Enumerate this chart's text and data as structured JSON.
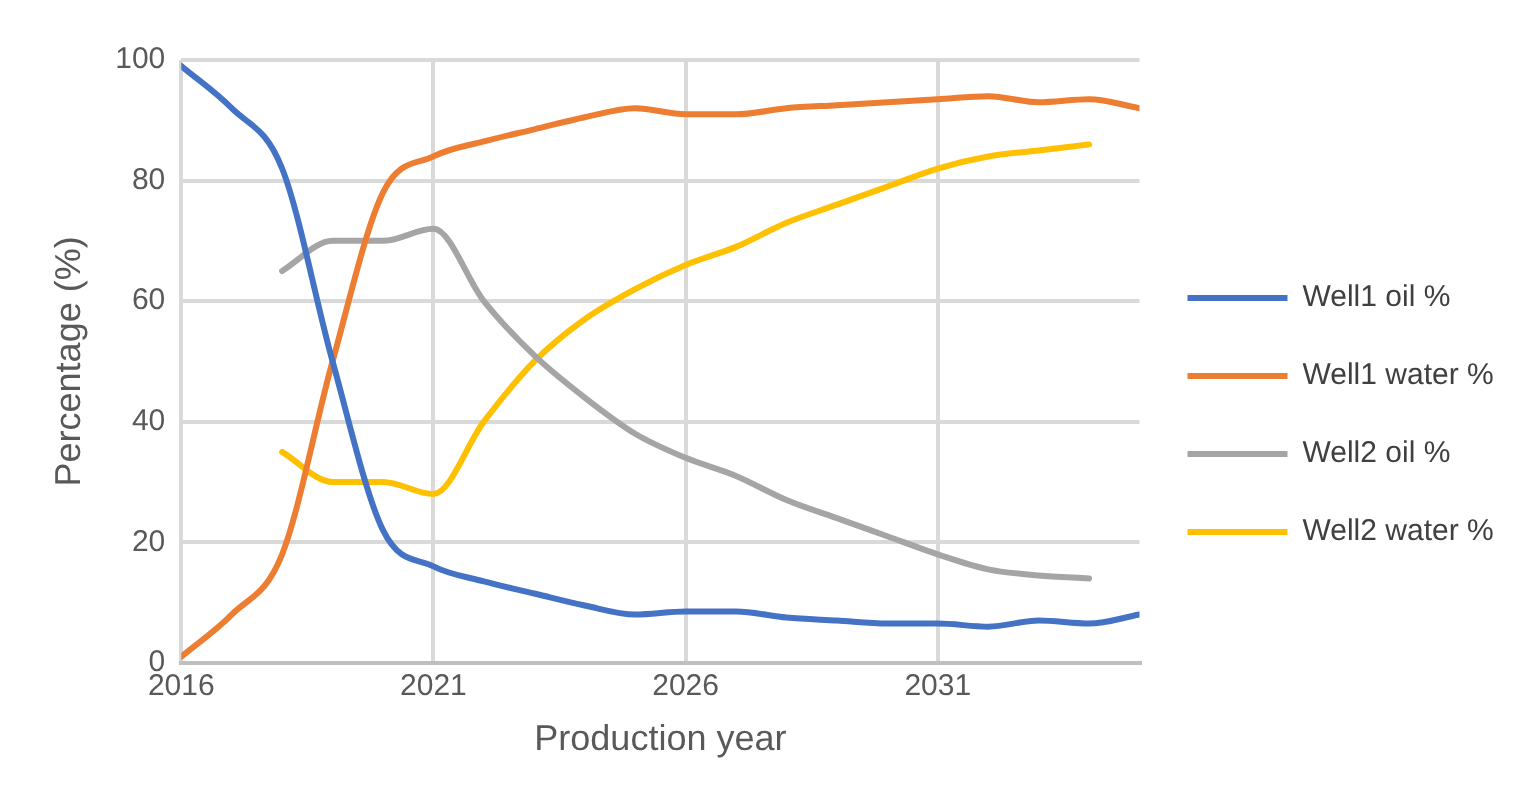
{
  "chart_data": {
    "type": "line",
    "xlabel": "Production year",
    "ylabel": "Percentage (%)",
    "xlim": [
      2016,
      2035
    ],
    "xticks": [
      2016,
      2021,
      2026,
      2031
    ],
    "ylim": [
      0,
      100
    ],
    "yticks": [
      0,
      20,
      40,
      60,
      80,
      100
    ],
    "grid": true,
    "legend": "right",
    "marker": "none",
    "line_style": "solid",
    "series": [
      {
        "name": "Well1 oil %",
        "color": "#4472c4",
        "x": [
          2016,
          2017,
          2018,
          2019,
          2020,
          2021,
          2022,
          2023,
          2024,
          2025,
          2026,
          2027,
          2028,
          2029,
          2030,
          2031,
          2032,
          2033,
          2034,
          2035
        ],
        "values": [
          99,
          92,
          82,
          50,
          22,
          16,
          13.5,
          11.5,
          9.5,
          8,
          8.5,
          8.5,
          7.5,
          7,
          6.5,
          6.5,
          6,
          7,
          6.5,
          8
        ]
      },
      {
        "name": "Well1 water %",
        "color": "#ed7d31",
        "x": [
          2016,
          2017,
          2018,
          2019,
          2020,
          2021,
          2022,
          2023,
          2024,
          2025,
          2026,
          2027,
          2028,
          2029,
          2030,
          2031,
          2032,
          2033,
          2034,
          2035
        ],
        "values": [
          1,
          8,
          18,
          50,
          78,
          84,
          86.5,
          88.5,
          90.5,
          92,
          91,
          91,
          92,
          92.5,
          93,
          93.5,
          94,
          93,
          93.5,
          92
        ]
      },
      {
        "name": "Well2 oil %",
        "color": "#a5a5a5",
        "x": [
          2018,
          2019,
          2020,
          2021,
          2022,
          2023,
          2024,
          2025,
          2026,
          2027,
          2028,
          2029,
          2030,
          2031,
          2032,
          2033,
          2034
        ],
        "values": [
          65,
          70,
          70,
          72,
          60,
          51,
          44,
          38,
          34,
          31,
          27,
          24,
          21,
          18,
          15.5,
          14.5,
          14
        ]
      },
      {
        "name": "Well2 water %",
        "color": "#ffc000",
        "x": [
          2018,
          2019,
          2020,
          2021,
          2022,
          2023,
          2024,
          2025,
          2026,
          2027,
          2028,
          2029,
          2030,
          2031,
          2032,
          2033,
          2034
        ],
        "values": [
          35,
          30,
          30,
          28,
          40,
          50,
          57,
          62,
          66,
          69,
          73,
          76,
          79,
          82,
          84,
          85,
          86
        ]
      }
    ]
  }
}
